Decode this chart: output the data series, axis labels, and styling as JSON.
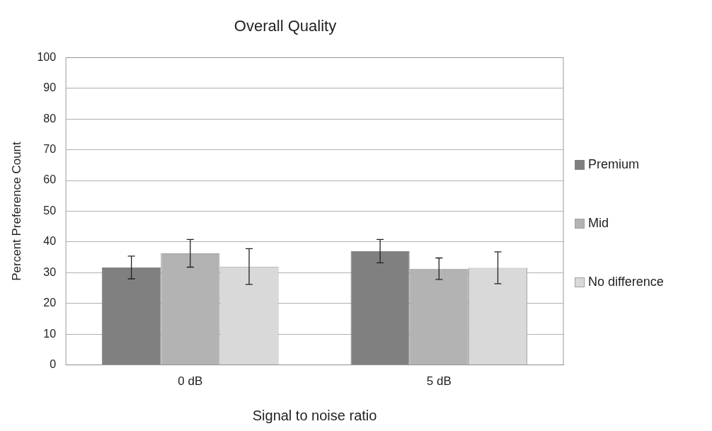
{
  "chart_data": {
    "type": "bar",
    "title": "Overall Quality",
    "xlabel": "Signal to noise ratio",
    "ylabel": "Percent Preference Count",
    "categories": [
      "0 dB",
      "5 dB"
    ],
    "series": [
      {
        "name": "Premium",
        "color": "#808080",
        "values": [
          31.7,
          37.0
        ],
        "errors": [
          3.7,
          3.8
        ]
      },
      {
        "name": "Mid",
        "color": "#b3b3b3",
        "values": [
          36.3,
          31.3
        ],
        "errors": [
          4.5,
          3.5
        ]
      },
      {
        "name": "No difference",
        "color": "#d9d9d9",
        "values": [
          32.0,
          31.6
        ],
        "errors": [
          5.8,
          5.2
        ]
      }
    ],
    "ylim": [
      0,
      100
    ],
    "yticks": [
      0,
      10,
      20,
      30,
      40,
      50,
      60,
      70,
      80,
      90,
      100
    ],
    "grid": "y",
    "legend": "right"
  }
}
